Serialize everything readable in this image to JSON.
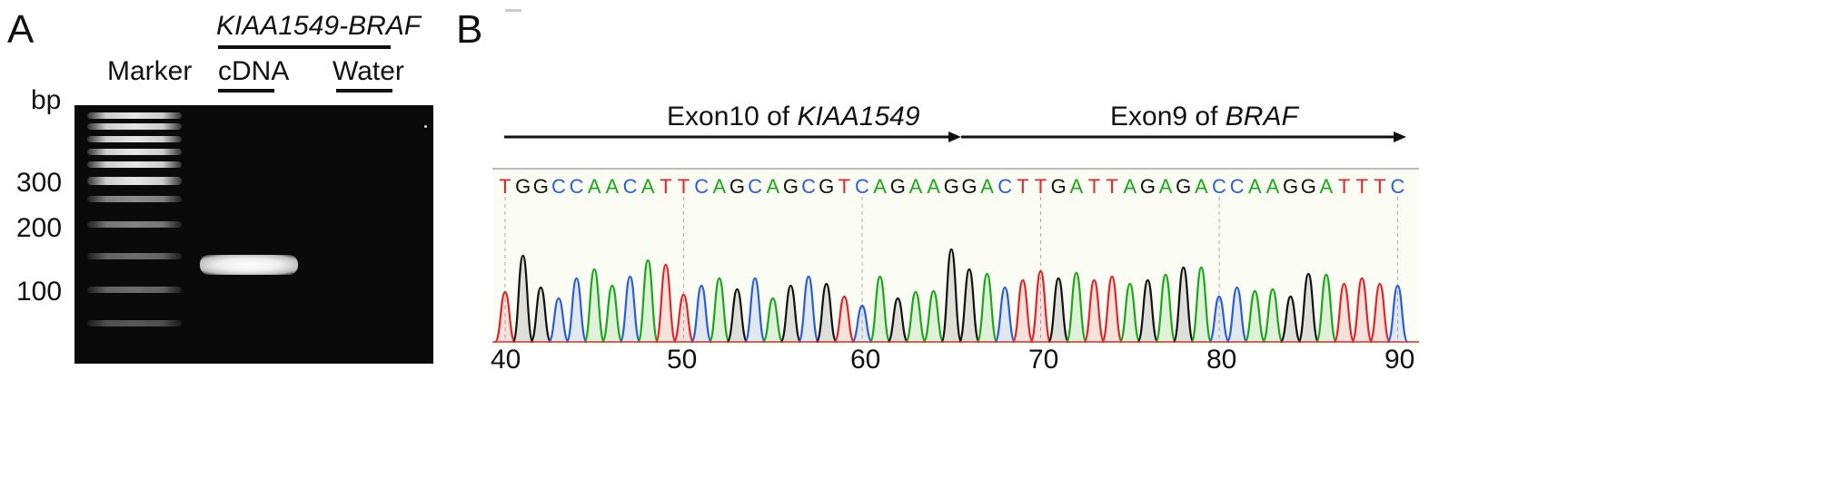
{
  "panel_a": {
    "letter": "A",
    "construct": "KIAA1549-BRAF",
    "lane_marker": "Marker",
    "lane_cdna": "cDNA",
    "lane_water": "Water",
    "unit": "bp",
    "size_labels": [
      "300",
      "200",
      "100"
    ]
  },
  "panel_b": {
    "letter": "B",
    "exon_left_prefix": "Exon10 of ",
    "exon_left_gene": "KIAA1549",
    "exon_right_prefix": "Exon9 of ",
    "exon_right_gene": "BRAF",
    "sequence": "TGGCCAACATTCAGCAGCGTCAGAAGGACTTGATTAGAGACCAAGGATTTC",
    "base_colors": {
      "A": "#1aa81a",
      "C": "#2b5ed6",
      "G": "#111111",
      "T": "#e0262b"
    },
    "position_ticks": [
      "40",
      "50",
      "60",
      "70",
      "80",
      "90"
    ]
  }
}
